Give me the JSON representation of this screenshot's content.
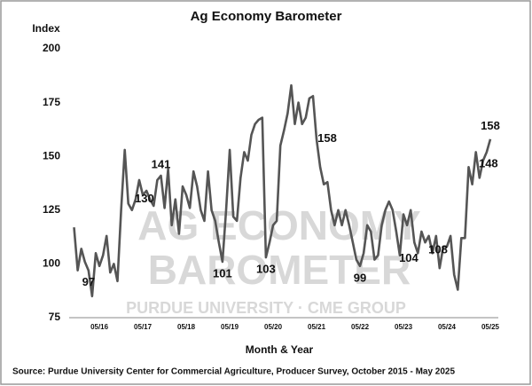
{
  "chart_data": {
    "type": "line",
    "title": "Ag Economy Barometer",
    "y_label": "Index",
    "x_label": "Month & Year",
    "source": "Source: Purdue University Center for Commercial Agriculture, Producer Survey, October 2015 - May 2025",
    "watermark": [
      "AG ECONOMY",
      "BAROMETER",
      "PURDUE UNIVERSITY · CME GROUP"
    ],
    "categories": [
      null,
      null,
      null,
      null,
      null,
      null,
      null,
      "05/16",
      null,
      null,
      null,
      null,
      null,
      null,
      null,
      null,
      null,
      null,
      null,
      "05/17",
      null,
      null,
      null,
      null,
      null,
      null,
      null,
      null,
      null,
      null,
      null,
      "05/18",
      null,
      null,
      null,
      null,
      null,
      null,
      null,
      null,
      null,
      null,
      null,
      "05/19",
      null,
      null,
      null,
      null,
      null,
      null,
      null,
      null,
      null,
      null,
      null,
      "05/20",
      null,
      null,
      null,
      null,
      null,
      null,
      null,
      null,
      null,
      null,
      null,
      "05/21",
      null,
      null,
      null,
      null,
      null,
      null,
      null,
      null,
      null,
      null,
      null,
      "05/22",
      null,
      null,
      null,
      null,
      null,
      null,
      null,
      null,
      null,
      null,
      null,
      "05/23",
      null,
      null,
      null,
      null,
      null,
      null,
      null,
      null,
      null,
      null,
      null,
      "05/24",
      null,
      null,
      null,
      null,
      null,
      null,
      null,
      null,
      null,
      null,
      null,
      "05/25"
    ],
    "series": [
      {
        "name": "Ag Economy Barometer",
        "color": "#555555",
        "values": [
          117,
          97,
          107,
          101,
          97,
          85,
          105,
          99,
          104,
          113,
          96,
          100,
          92,
          125,
          153,
          128,
          125,
          130,
          139,
          132,
          134,
          130,
          127,
          139,
          141,
          126,
          144,
          118,
          130,
          114,
          136,
          132,
          126,
          143,
          136,
          125,
          120,
          143,
          125,
          120,
          110,
          101,
          125,
          153,
          122,
          120,
          140,
          152,
          148,
          160,
          165,
          167,
          168,
          103,
          110,
          118,
          120,
          155,
          162,
          170,
          183,
          165,
          175,
          165,
          168,
          177,
          178,
          158,
          145,
          137,
          138,
          125,
          118,
          125,
          118,
          125,
          118,
          110,
          102,
          99,
          105,
          118,
          115,
          102,
          104,
          118,
          125,
          129,
          125,
          115,
          104,
          123,
          118,
          125,
          110,
          105,
          115,
          110,
          113,
          105,
          113,
          98,
          108,
          108,
          113,
          95,
          88,
          112,
          112,
          145,
          137,
          152,
          140,
          148,
          152,
          158
        ],
        "value_labels": [
          null,
          null,
          null,
          null,
          "97",
          null,
          null,
          null,
          null,
          null,
          null,
          null,
          null,
          null,
          null,
          null,
          null,
          "130",
          null,
          null,
          null,
          null,
          null,
          null,
          "141",
          null,
          null,
          null,
          null,
          null,
          null,
          null,
          null,
          null,
          null,
          null,
          null,
          null,
          null,
          null,
          null,
          "101",
          null,
          null,
          null,
          null,
          null,
          null,
          null,
          null,
          null,
          null,
          null,
          "103",
          null,
          null,
          null,
          null,
          null,
          null,
          null,
          null,
          null,
          null,
          null,
          null,
          null,
          "158",
          null,
          null,
          null,
          null,
          null,
          null,
          null,
          null,
          null,
          null,
          null,
          "99",
          null,
          null,
          null,
          null,
          null,
          null,
          null,
          null,
          null,
          null,
          "104",
          null,
          null,
          null,
          null,
          null,
          null,
          null,
          null,
          null,
          null,
          null,
          null,
          "108",
          null,
          null,
          null,
          null,
          null,
          null,
          null,
          null,
          null,
          "148",
          null,
          "158"
        ]
      }
    ],
    "ylim": [
      75,
      200
    ],
    "yticks": [
      75,
      100,
      125,
      150,
      175,
      200
    ],
    "grid": false
  }
}
